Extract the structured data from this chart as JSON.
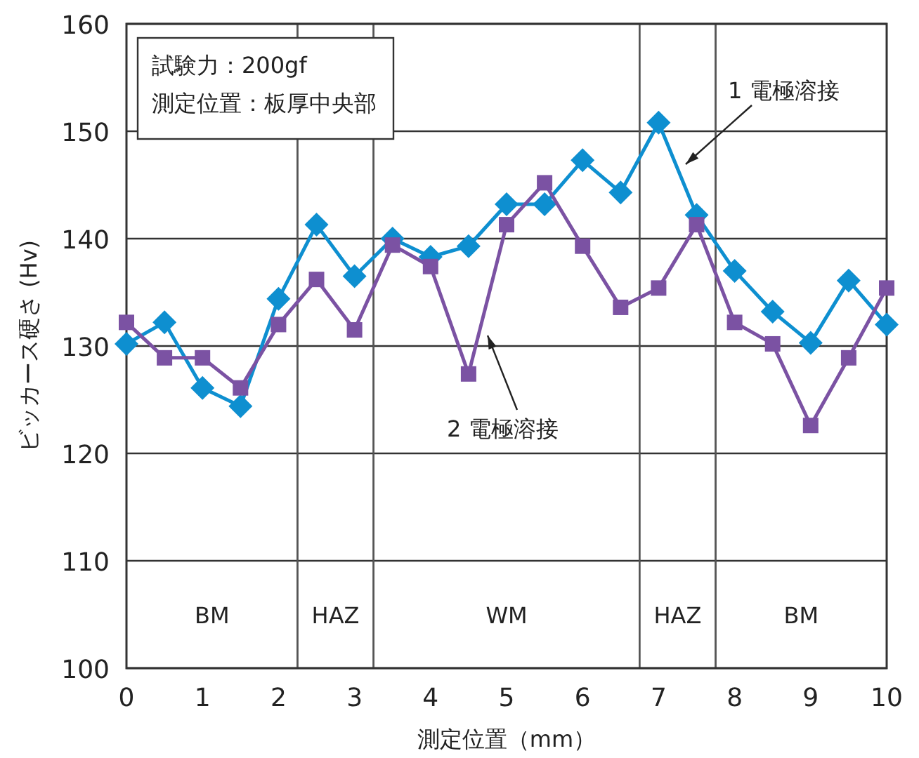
{
  "chart_data": {
    "type": "line",
    "xlabel": "測定位置（mm）",
    "ylabel": "ビッカース硬さ (Hv)",
    "xlim": [
      0,
      10
    ],
    "xticks": [
      0,
      1,
      2,
      3,
      4,
      5,
      6,
      7,
      8,
      9,
      10
    ],
    "ylim": [
      100,
      160
    ],
    "yticks": [
      100,
      110,
      120,
      130,
      140,
      150,
      160
    ],
    "grid": "y",
    "legend": false,
    "x": [
      0,
      0.5,
      1,
      1.5,
      2,
      2.5,
      3,
      3.5,
      4,
      4.5,
      5,
      5.5,
      6,
      6.5,
      7,
      7.5,
      8,
      8.5,
      9,
      9.5,
      10
    ],
    "series": [
      {
        "name": "1 電極溶接",
        "color": "#0e8fd0",
        "marker": "diamond",
        "values": [
          130.2,
          132.2,
          126.1,
          124.4,
          134.4,
          141.3,
          136.5,
          140.0,
          138.3,
          139.3,
          143.2,
          143.2,
          147.3,
          144.3,
          150.8,
          142.2,
          137.0,
          133.2,
          130.3,
          136.1,
          132.0
        ]
      },
      {
        "name": "2 電極溶接",
        "color": "#7b52a3",
        "marker": "square",
        "values": [
          132.2,
          128.9,
          128.9,
          126.1,
          132.0,
          136.2,
          131.5,
          139.4,
          137.4,
          127.4,
          141.3,
          145.2,
          139.3,
          133.6,
          135.4,
          141.3,
          132.2,
          130.2,
          122.6,
          128.9,
          135.4
        ]
      }
    ],
    "bands": [
      {
        "axis": "x",
        "from": 0,
        "to": 2.25,
        "label": "BM",
        "color": "#ffffff"
      },
      {
        "axis": "x",
        "from": 2.25,
        "to": 3.25,
        "label": "HAZ",
        "color": "#ffffff"
      },
      {
        "axis": "x",
        "from": 3.25,
        "to": 6.75,
        "label": "WM",
        "color": "#ffffff"
      },
      {
        "axis": "x",
        "from": 6.75,
        "to": 7.75,
        "label": "HAZ",
        "color": "#ffffff"
      },
      {
        "axis": "x",
        "from": 7.75,
        "to": 10,
        "label": "BM",
        "color": "#ffffff"
      }
    ],
    "annotations": [
      "試験力：200gf",
      "測定位置：板厚中央部"
    ]
  }
}
